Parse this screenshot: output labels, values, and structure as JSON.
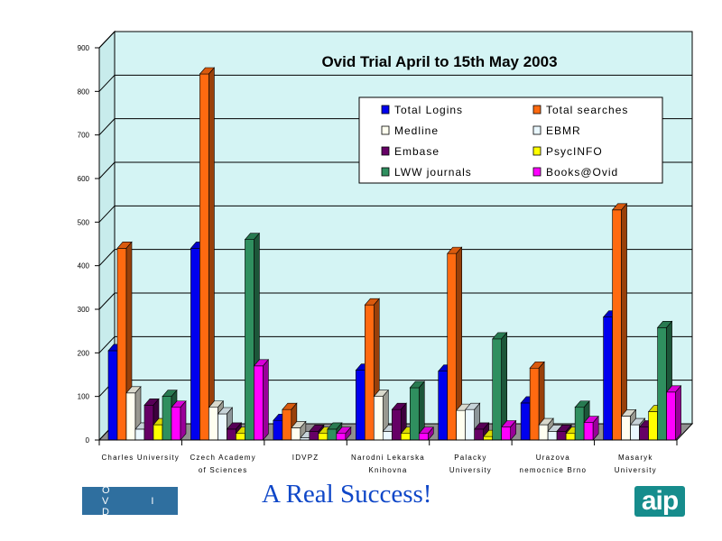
{
  "slogan": "A Real Success!",
  "logos": {
    "ovid": "O V I D",
    "aip": "aip"
  },
  "chart_data": {
    "type": "bar",
    "title": "Ovid Trial April to 15th May 2003",
    "xlabel": "",
    "ylabel": "",
    "ylim": [
      0,
      900
    ],
    "yticks": [
      0,
      100,
      200,
      300,
      400,
      500,
      600,
      700,
      800,
      900
    ],
    "grid": true,
    "legend_position": "top-right",
    "categories": [
      [
        "Charles  University"
      ],
      [
        "Czech Academy",
        "of Sciences"
      ],
      [
        "IDVPZ"
      ],
      [
        "Narodni Lekarska",
        "Knihovna"
      ],
      [
        "Palacky",
        "University"
      ],
      [
        "Urazova",
        "nemocnice Brno"
      ],
      [
        "Masaryk",
        "University"
      ]
    ],
    "series": [
      {
        "name": "Total Logins",
        "color": "#0000ee",
        "values": [
          205,
          440,
          45,
          160,
          158,
          85,
          282
        ]
      },
      {
        "name": "Total searches",
        "color": "#ff6a10",
        "values": [
          440,
          840,
          70,
          310,
          428,
          165,
          528
        ]
      },
      {
        "name": "Medline",
        "color": "#fffff0",
        "values": [
          108,
          75,
          28,
          100,
          68,
          35,
          55
        ]
      },
      {
        "name": "EBMR",
        "color": "#eaf8ff",
        "values": [
          25,
          60,
          5,
          20,
          70,
          20,
          35
        ]
      },
      {
        "name": "Embase",
        "color": "#660066",
        "values": [
          80,
          25,
          20,
          70,
          25,
          20,
          30
        ]
      },
      {
        "name": "PsycINFO",
        "color": "#ffff00",
        "values": [
          35,
          15,
          15,
          15,
          8,
          15,
          65
        ]
      },
      {
        "name": "LWW journals",
        "color": "#2f8f5f",
        "values": [
          100,
          460,
          25,
          120,
          232,
          75,
          258
        ]
      },
      {
        "name": "Books@Ovid",
        "color": "#ff00ff",
        "values": [
          75,
          170,
          15,
          15,
          30,
          40,
          110
        ]
      }
    ]
  }
}
